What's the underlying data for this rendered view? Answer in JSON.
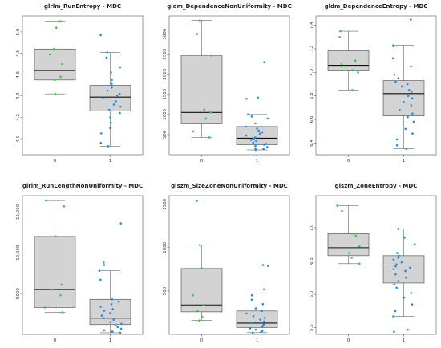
{
  "colors": {
    "group0_points": "#2ecc40",
    "group1_points": "#1f8fe5",
    "box_fill": "#d3d3d3",
    "box_stroke": "#444444",
    "median": "#111111",
    "frame": "#555555"
  },
  "chart_data": [
    {
      "type": "box",
      "title": "glrlm_RunEntropy - MDC",
      "categories": [
        "0",
        "1"
      ],
      "ylim": [
        3.85,
        5.15
      ],
      "yticks": [
        4.0,
        4.2,
        4.4,
        4.6,
        4.8,
        5.0
      ],
      "ytick_labels": [
        "4.0",
        "4.2",
        "4.4",
        "4.6",
        "4.8",
        "5.0"
      ],
      "grid": false,
      "boxes": [
        {
          "category": "0",
          "whisker_low": 4.42,
          "q1": 4.55,
          "median": 4.64,
          "q3": 4.84,
          "whisker_high": 5.1,
          "points": [
            5.1,
            5.04,
            4.84,
            4.79,
            4.7,
            4.58,
            4.55,
            4.42
          ]
        },
        {
          "category": "1",
          "whisker_low": 3.93,
          "q1": 4.26,
          "median": 4.39,
          "q3": 4.5,
          "whisker_high": 4.81,
          "points": [
            4.97,
            4.81,
            4.76,
            4.67,
            4.62,
            4.55,
            4.52,
            4.5,
            4.48,
            4.45,
            4.42,
            4.4,
            4.38,
            4.35,
            4.32,
            4.3,
            4.27,
            4.24,
            4.2,
            4.15,
            4.1,
            4.05,
            3.96,
            3.93
          ]
        }
      ]
    },
    {
      "type": "box",
      "title": "gldm_DependenceNonUniformity - MDC",
      "categories": [
        "0",
        "1"
      ],
      "ylim": [
        0,
        3450
      ],
      "yticks": [
        500,
        1000,
        1500,
        2000,
        2500,
        3000
      ],
      "ytick_labels": [
        "500",
        "1000",
        "1500",
        "2000",
        "2500",
        "3000"
      ],
      "grid": false,
      "boxes": [
        {
          "category": "0",
          "whisker_low": 430,
          "q1": 770,
          "median": 1050,
          "q3": 2470,
          "whisker_high": 3340,
          "points": [
            3340,
            3000,
            2470,
            1120,
            1050,
            900,
            580,
            430
          ]
        },
        {
          "category": "1",
          "whisker_low": 120,
          "q1": 250,
          "median": 410,
          "q3": 700,
          "whisker_high": 1000,
          "points": [
            2300,
            1420,
            1390,
            1000,
            950,
            900,
            780,
            700,
            650,
            600,
            560,
            520,
            480,
            430,
            400,
            370,
            340,
            300,
            270,
            250,
            220,
            190,
            160,
            140,
            120
          ]
        }
      ]
    },
    {
      "type": "box",
      "title": "gldm_DependenceEntropy - MDC",
      "categories": [
        "0",
        "1"
      ],
      "ylim": [
        6.3,
        7.48
      ],
      "yticks": [
        6.4,
        6.6,
        6.8,
        7.0,
        7.2,
        7.4
      ],
      "ytick_labels": [
        "6.4",
        "6.6",
        "6.8",
        "7.0",
        "7.2",
        "7.4"
      ],
      "grid": false,
      "boxes": [
        {
          "category": "0",
          "whisker_low": 6.85,
          "q1": 7.02,
          "median": 7.06,
          "q3": 7.19,
          "whisker_high": 7.35,
          "points": [
            7.35,
            7.3,
            7.1,
            7.07,
            7.05,
            7.02,
            7.0,
            6.85
          ]
        },
        {
          "category": "1",
          "whisker_low": 6.35,
          "q1": 6.63,
          "median": 6.82,
          "q3": 6.93,
          "whisker_high": 7.23,
          "points": [
            7.45,
            7.23,
            7.12,
            7.05,
            6.98,
            6.95,
            6.92,
            6.9,
            6.88,
            6.85,
            6.83,
            6.8,
            6.78,
            6.75,
            6.72,
            6.68,
            6.65,
            6.62,
            6.58,
            6.52,
            6.48,
            6.43,
            6.38,
            6.35
          ]
        }
      ]
    },
    {
      "type": "box",
      "title": "glrlm_RunLengthNonUniformity - MDC",
      "categories": [
        "0",
        "1"
      ],
      "ylim": [
        0,
        17000
      ],
      "yticks": [
        5000,
        10000,
        15000
      ],
      "ytick_labels": [
        "5000",
        "10,000",
        "15,000"
      ],
      "grid": false,
      "boxes": [
        {
          "category": "0",
          "whisker_low": 2700,
          "q1": 3300,
          "median": 5500,
          "q3": 12000,
          "whisker_high": 16400,
          "points": [
            16400,
            15700,
            12000,
            6100,
            5500,
            4800,
            3300,
            2700
          ]
        },
        {
          "category": "1",
          "whisker_low": 200,
          "q1": 1200,
          "median": 2000,
          "q3": 4300,
          "whisker_high": 7800,
          "points": [
            13600,
            8800,
            8500,
            7800,
            6700,
            4300,
            4000,
            3700,
            3400,
            3100,
            2900,
            2600,
            2300,
            2000,
            1800,
            1500,
            1300,
            1100,
            900,
            700,
            500,
            350,
            200
          ]
        }
      ]
    },
    {
      "type": "box",
      "title": "glszm_SizeZoneNonUniformity - MDC",
      "categories": [
        "0",
        "1"
      ],
      "ylim": [
        0,
        1600
      ],
      "yticks": [
        500,
        1000,
        1500
      ],
      "ytick_labels": [
        "500",
        "1000",
        "1500"
      ],
      "grid": false,
      "boxes": [
        {
          "category": "0",
          "whisker_low": 160,
          "q1": 260,
          "median": 340,
          "q3": 760,
          "whisker_high": 1030,
          "points": [
            1540,
            1030,
            760,
            450,
            340,
            270,
            200,
            160
          ]
        },
        {
          "category": "1",
          "whisker_low": 20,
          "q1": 80,
          "median": 130,
          "q3": 270,
          "whisker_high": 520,
          "points": [
            800,
            790,
            520,
            450,
            400,
            350,
            300,
            270,
            240,
            210,
            190,
            170,
            150,
            130,
            115,
            100,
            85,
            70,
            55,
            40,
            30,
            20
          ]
        }
      ]
    },
    {
      "type": "box",
      "title": "glszm_ZoneEntropy - MDC",
      "categories": [
        "0",
        "1"
      ],
      "ylim": [
        5.4,
        7.48
      ],
      "yticks": [
        5.5,
        6.0,
        6.5,
        7.0
      ],
      "ytick_labels": [
        "5.5",
        "6.0",
        "6.5",
        "7.0"
      ],
      "grid": false,
      "boxes": [
        {
          "category": "0",
          "whisker_low": 6.46,
          "q1": 6.58,
          "median": 6.7,
          "q3": 6.91,
          "whisker_high": 7.33,
          "points": [
            7.33,
            7.25,
            6.91,
            6.88,
            6.72,
            6.62,
            6.55,
            6.46
          ]
        },
        {
          "category": "1",
          "whisker_low": 5.67,
          "q1": 6.17,
          "median": 6.38,
          "q3": 6.58,
          "whisker_high": 6.98,
          "points": [
            6.98,
            6.85,
            6.75,
            6.62,
            6.58,
            6.55,
            6.52,
            6.48,
            6.45,
            6.42,
            6.4,
            6.38,
            6.35,
            6.3,
            6.25,
            6.2,
            6.15,
            6.1,
            6.02,
            5.95,
            5.85,
            5.75,
            5.67,
            5.47,
            5.44
          ]
        }
      ]
    }
  ]
}
